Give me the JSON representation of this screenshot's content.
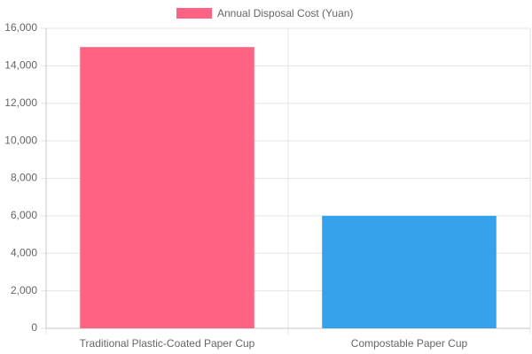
{
  "chart_data": {
    "type": "bar",
    "categories": [
      "Traditional Plastic-Coated Paper Cup",
      "Compostable Paper Cup"
    ],
    "series": [
      {
        "name": "Annual Disposal Cost (Yuan)",
        "colors": [
          "#ff6384",
          "#36a2eb"
        ],
        "values": [
          15000,
          6000
        ]
      }
    ],
    "ylim": [
      0,
      16000
    ],
    "yticks": [
      0,
      {
        "value": 2000,
        "label": "2,000"
      },
      {
        "value": 4000,
        "label": "4,000"
      },
      {
        "value": 6000,
        "label": "6,000"
      },
      {
        "value": 8000,
        "label": "8,000"
      },
      {
        "value": 10000,
        "label": "10,000"
      },
      {
        "value": 12000,
        "label": "12,000"
      },
      {
        "value": 14000,
        "label": "14,000"
      },
      {
        "value": 16000,
        "label": "16,000"
      }
    ],
    "grid": true,
    "legend": "top"
  }
}
